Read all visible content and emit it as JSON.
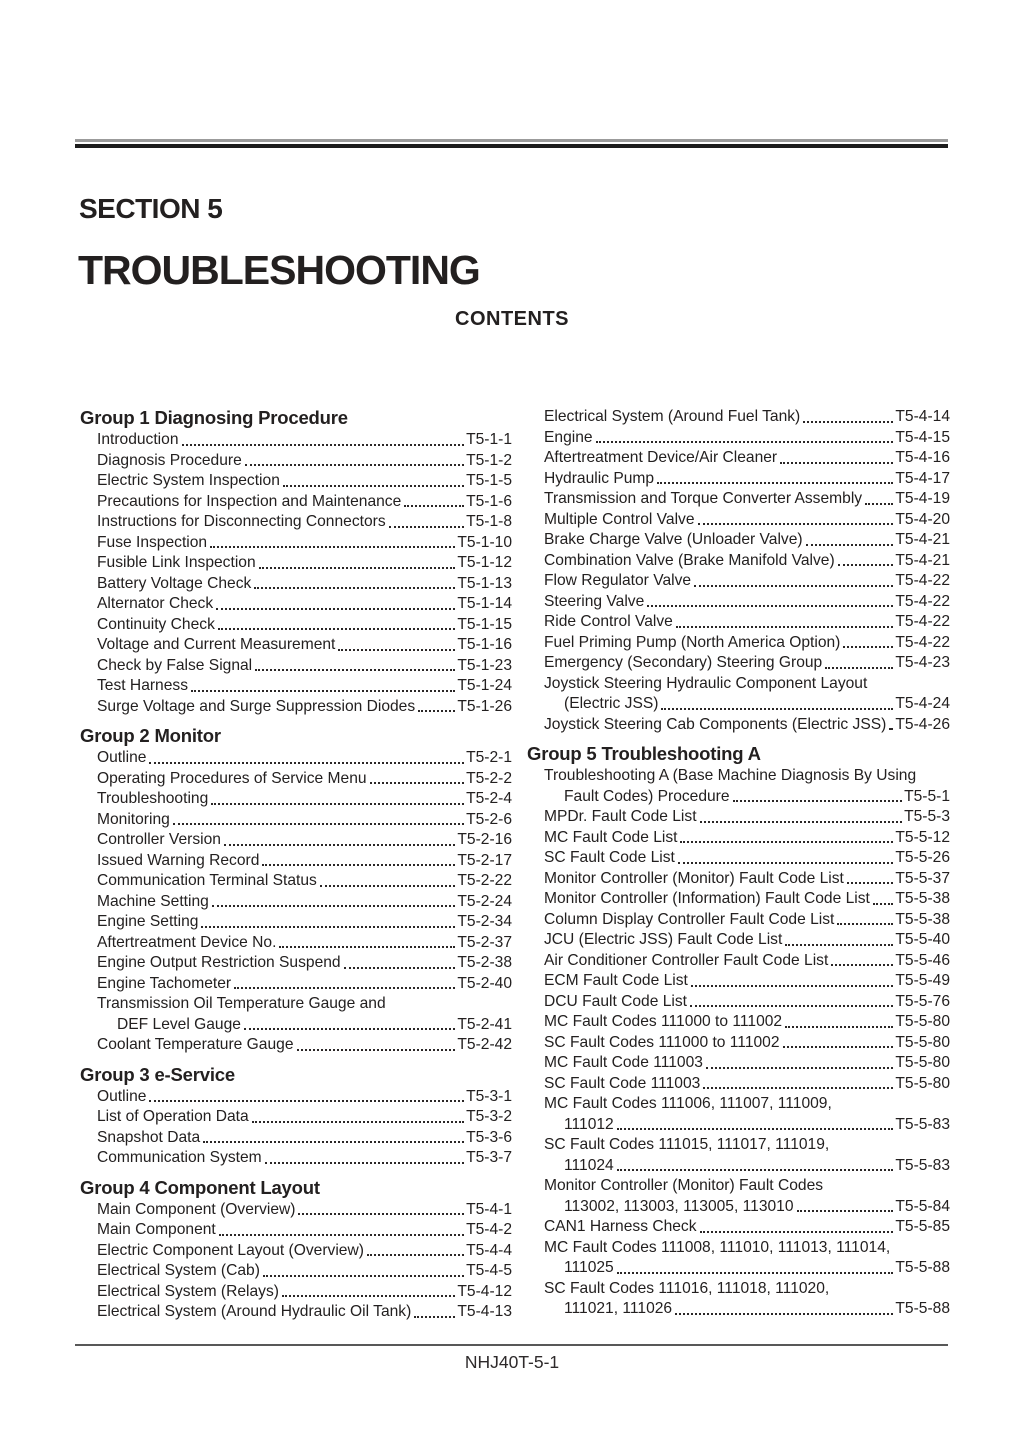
{
  "page": {
    "section_label": "SECTION 5",
    "title": "TROUBLESHOOTING",
    "contents_label": "CONTENTS",
    "footer": "NHJ40T-5-1"
  },
  "toc": {
    "columns": [
      {
        "groups": [
          {
            "heading": "Group 1 Diagnosing Procedure",
            "entries": [
              {
                "text": "Introduction",
                "page": "T5-1-1"
              },
              {
                "text": "Diagnosis Procedure",
                "page": "T5-1-2"
              },
              {
                "text": "Electric System Inspection",
                "page": "T5-1-5"
              },
              {
                "text": "Precautions for Inspection and Maintenance",
                "page": "T5-1-6"
              },
              {
                "text": "Instructions for Disconnecting Connectors",
                "page": "T5-1-8"
              },
              {
                "text": "Fuse Inspection",
                "page": "T5-1-10"
              },
              {
                "text": "Fusible Link Inspection",
                "page": "T5-1-12"
              },
              {
                "text": "Battery Voltage Check",
                "page": "T5-1-13"
              },
              {
                "text": "Alternator Check",
                "page": "T5-1-14"
              },
              {
                "text": "Continuity Check",
                "page": "T5-1-15"
              },
              {
                "text": "Voltage and Current Measurement",
                "page": "T5-1-16"
              },
              {
                "text": "Check by False Signal",
                "page": "T5-1-23"
              },
              {
                "text": "Test Harness",
                "page": "T5-1-24"
              },
              {
                "text": "Surge Voltage and Surge Suppression Diodes",
                "page": "T5-1-26"
              }
            ]
          },
          {
            "heading": "Group 2 Monitor",
            "entries": [
              {
                "text": "Outline",
                "page": "T5-2-1"
              },
              {
                "text": "Operating Procedures of Service Menu",
                "page": "T5-2-2"
              },
              {
                "text": "Troubleshooting",
                "page": "T5-2-4"
              },
              {
                "text": "Monitoring",
                "page": "T5-2-6"
              },
              {
                "text": "Controller Version",
                "page": "T5-2-16"
              },
              {
                "text": "Issued Warning Record",
                "page": "T5-2-17"
              },
              {
                "text": "Communication Terminal Status",
                "page": "T5-2-22"
              },
              {
                "text": "Machine Setting",
                "page": "T5-2-24"
              },
              {
                "text": "Engine Setting",
                "page": "T5-2-34"
              },
              {
                "text": "Aftertreatment Device No.",
                "page": "T5-2-37"
              },
              {
                "text": "Engine Output Restriction Suspend",
                "page": "T5-2-38"
              },
              {
                "text": "Engine Tachometer",
                "page": "T5-2-40"
              },
              {
                "text": "Transmission Oil Temperature Gauge and",
                "text2": "DEF Level Gauge",
                "page": "T5-2-41"
              },
              {
                "text": "Coolant Temperature Gauge",
                "page": "T5-2-42"
              }
            ]
          },
          {
            "heading": "Group 3 e-Service",
            "entries": [
              {
                "text": "Outline",
                "page": "T5-3-1"
              },
              {
                "text": "List of Operation Data",
                "page": "T5-3-2"
              },
              {
                "text": "Snapshot Data",
                "page": "T5-3-6"
              },
              {
                "text": "Communication System",
                "page": "T5-3-7"
              }
            ]
          },
          {
            "heading": "Group 4 Component Layout",
            "entries": [
              {
                "text": "Main Component (Overview)",
                "page": "T5-4-1"
              },
              {
                "text": "Main Component",
                "page": "T5-4-2"
              },
              {
                "text": "Electric Component Layout (Overview)",
                "page": "T5-4-4"
              },
              {
                "text": "Electrical System (Cab)",
                "page": "T5-4-5"
              },
              {
                "text": "Electrical System (Relays)",
                "page": "T5-4-12"
              },
              {
                "text": "Electrical System (Around Hydraulic Oil Tank)",
                "page": "T5-4-13"
              }
            ]
          }
        ]
      },
      {
        "groups": [
          {
            "entries": [
              {
                "text": "Electrical System (Around Fuel Tank)",
                "page": "T5-4-14"
              },
              {
                "text": "Engine",
                "page": "T5-4-15"
              },
              {
                "text": "Aftertreatment Device/Air Cleaner",
                "page": "T5-4-16"
              },
              {
                "text": "Hydraulic Pump",
                "page": "T5-4-17"
              },
              {
                "text": "Transmission and Torque Converter Assembly",
                "page": "T5-4-19"
              },
              {
                "text": "Multiple Control Valve",
                "page": "T5-4-20"
              },
              {
                "text": "Brake Charge Valve (Unloader Valve)",
                "page": "T5-4-21"
              },
              {
                "text": "Combination Valve (Brake Manifold Valve)",
                "page": "T5-4-21"
              },
              {
                "text": "Flow Regulator Valve",
                "page": "T5-4-22"
              },
              {
                "text": "Steering Valve",
                "page": "T5-4-22"
              },
              {
                "text": "Ride Control Valve",
                "page": "T5-4-22"
              },
              {
                "text": "Fuel Priming Pump (North America Option)",
                "page": "T5-4-22"
              },
              {
                "text": "Emergency (Secondary) Steering Group",
                "page": "T5-4-23"
              },
              {
                "text": "Joystick Steering Hydraulic Component Layout",
                "text2": "(Electric JSS)",
                "page": "T5-4-24"
              },
              {
                "text": "Joystick Steering Cab Components (Electric JSS)",
                "page": "T5-4-26"
              }
            ]
          },
          {
            "heading": "Group 5 Troubleshooting A",
            "entries": [
              {
                "text": "Troubleshooting A (Base Machine Diagnosis By Using",
                "text2": "Fault Codes) Procedure",
                "page": "T5-5-1"
              },
              {
                "text": "MPDr. Fault Code List",
                "page": "T5-5-3"
              },
              {
                "text": "MC Fault Code List",
                "page": "T5-5-12"
              },
              {
                "text": "SC Fault Code List",
                "page": "T5-5-26"
              },
              {
                "text": "Monitor Controller (Monitor) Fault Code List",
                "page": "T5-5-37"
              },
              {
                "text": "Monitor Controller (Information) Fault Code List",
                "page": "T5-5-38"
              },
              {
                "text": "Column Display Controller Fault Code List",
                "page": "T5-5-38"
              },
              {
                "text": "JCU (Electric JSS) Fault Code List",
                "page": "T5-5-40"
              },
              {
                "text": "Air Conditioner Controller Fault Code List",
                "page": "T5-5-46"
              },
              {
                "text": "ECM Fault Code List",
                "page": "T5-5-49"
              },
              {
                "text": "DCU Fault Code List",
                "page": "T5-5-76"
              },
              {
                "text": "MC Fault Codes 111000 to 111002",
                "page": "T5-5-80"
              },
              {
                "text": "SC Fault Codes 111000 to 111002",
                "page": "T5-5-80"
              },
              {
                "text": "MC Fault Code 111003",
                "page": "T5-5-80"
              },
              {
                "text": "SC Fault Code 111003",
                "page": "T5-5-80"
              },
              {
                "text": "MC Fault Codes 111006, 111007, 111009,",
                "text2": "111012",
                "page": "T5-5-83"
              },
              {
                "text": "SC Fault Codes 111015, 111017, 111019,",
                "text2": "111024",
                "page": "T5-5-83"
              },
              {
                "text": "Monitor Controller (Monitor) Fault Codes",
                "text2": "113002, 113003, 113005, 113010",
                "page": "T5-5-84"
              },
              {
                "text": "CAN1 Harness Check",
                "page": "T5-5-85"
              },
              {
                "text": "MC Fault Codes 111008, 111010, 111013, 111014,",
                "text2": "111025",
                "page": "T5-5-88"
              },
              {
                "text": "SC Fault Codes 111016, 111018, 111020,",
                "text2": "111021, 111026",
                "page": "T5-5-88"
              }
            ]
          }
        ]
      }
    ]
  }
}
